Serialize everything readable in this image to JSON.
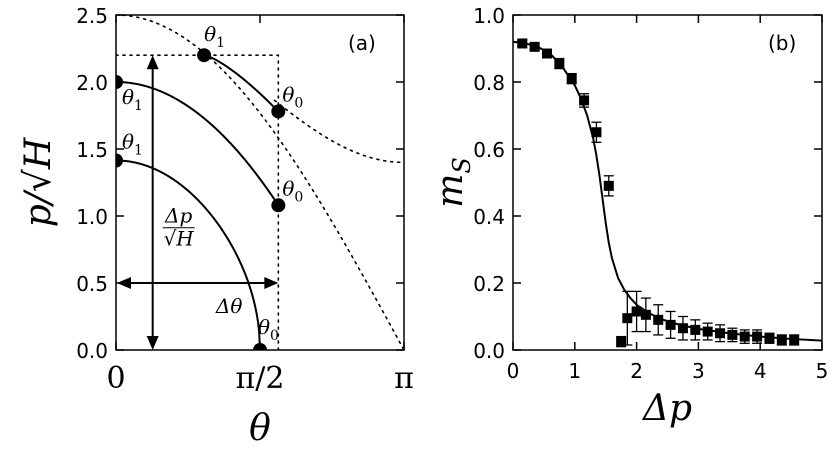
{
  "chart_data": [
    {
      "type": "line",
      "panel_label": "(a)",
      "xlabel": "θ",
      "ylabel": "p/√H",
      "xlim": [
        0,
        3.14159
      ],
      "ylim": [
        0,
        2.5
      ],
      "x_tick_labels": [
        "0",
        "π/2",
        "π"
      ],
      "x_tick_values": [
        0,
        1.5708,
        3.14159
      ],
      "y_tick_labels": [
        "0.0",
        "0.5",
        "1.0",
        "1.5",
        "2.0",
        "2.5"
      ],
      "y_tick_values": [
        0,
        0.5,
        1.0,
        1.5,
        2.0,
        2.5
      ],
      "curves": [
        {
          "style": "solid",
          "E": 0.5,
          "theta_range": [
            0,
            1.5708
          ]
        },
        {
          "style": "solid",
          "E": 1.0,
          "theta_range": [
            0,
            1.7708
          ]
        },
        {
          "style": "solid",
          "E": 2.0,
          "theta_range": [
            0.9608,
            1.7708
          ]
        },
        {
          "style": "dotted",
          "relation": "p = sqrt(2H)·cos(θ/2)",
          "theta_range": [
            1.73,
            3.14159
          ]
        },
        {
          "style": "dotted",
          "relation": "p = 2·sqrt(H)·cos(θ/2)",
          "theta_range": [
            0,
            3.14159
          ]
        }
      ],
      "points": [
        {
          "theta": 0,
          "p": 2.0,
          "label": "θ",
          "sub": "1"
        },
        {
          "theta": 0,
          "p": 1.4142,
          "label": "θ",
          "sub": "1"
        },
        {
          "theta": 0.9608,
          "p": 2.2,
          "label": "θ",
          "sub": "1"
        },
        {
          "theta": 1.7708,
          "p": 1.78,
          "label": "θ",
          "sub": "0"
        },
        {
          "theta": 1.7708,
          "p": 1.08,
          "label": "θ",
          "sub": "0"
        },
        {
          "theta": 1.5708,
          "p": 0.0,
          "label": "θ",
          "sub": "0"
        }
      ],
      "reference_lines": [
        {
          "style": "dotted",
          "orientation": "horizontal",
          "value": 2.2,
          "range": [
            0,
            1.7708
          ]
        },
        {
          "style": "dotted",
          "orientation": "vertical",
          "value": 1.7708,
          "range": [
            0,
            2.2
          ]
        }
      ],
      "arrows": [
        {
          "orientation": "vertical",
          "at": 0.4,
          "range": [
            0,
            2.2
          ],
          "label": "Δp/√H",
          "label_num": "Δp",
          "label_den": "√H"
        },
        {
          "orientation": "horizontal",
          "at": 0.5,
          "range": [
            0,
            1.7708
          ],
          "label": "Δθ"
        }
      ]
    },
    {
      "type": "scatter",
      "panel_label": "(b)",
      "xlabel": "Δp",
      "ylabel": "m_S",
      "ylabel_main": "m",
      "ylabel_sub": "S",
      "xlim": [
        0,
        5
      ],
      "ylim": [
        0,
        1.0
      ],
      "x_tick_labels": [
        "0",
        "1",
        "2",
        "3",
        "4",
        "5"
      ],
      "x_tick_values": [
        0,
        1,
        2,
        3,
        4,
        5
      ],
      "y_tick_labels": [
        "0.0",
        "0.2",
        "0.4",
        "0.6",
        "0.8",
        "1.0"
      ],
      "y_tick_values": [
        0,
        0.2,
        0.4,
        0.6,
        0.8,
        1.0
      ],
      "series": [
        {
          "x": [
            0.15,
            0.35,
            0.55,
            0.75,
            0.95,
            1.15,
            1.35,
            1.55,
            1.75,
            1.85,
            2.0,
            2.15,
            2.35,
            2.55,
            2.75,
            2.95,
            3.15,
            3.35,
            3.55,
            3.75,
            3.95,
            4.15,
            4.35,
            4.55
          ],
          "y": [
            0.915,
            0.905,
            0.885,
            0.855,
            0.81,
            0.745,
            0.65,
            0.49,
            0.025,
            0.095,
            0.115,
            0.105,
            0.09,
            0.075,
            0.065,
            0.06,
            0.055,
            0.05,
            0.045,
            0.04,
            0.04,
            0.035,
            0.03,
            0.03
          ],
          "yerr": [
            0.01,
            0.01,
            0.012,
            0.015,
            0.015,
            0.02,
            0.03,
            0.03,
            0.015,
            0.08,
            0.06,
            0.05,
            0.045,
            0.04,
            0.035,
            0.03,
            0.025,
            0.025,
            0.02,
            0.02,
            0.02,
            0.015,
            0.015,
            0.015
          ]
        }
      ],
      "fit_curve": {
        "x": [
          0,
          0.2,
          0.4,
          0.6,
          0.8,
          1.0,
          1.1,
          1.2,
          1.3,
          1.35,
          1.4,
          1.45,
          1.5,
          1.55,
          1.6,
          1.7,
          1.8,
          1.9,
          2.0,
          2.2,
          2.4,
          2.7,
          3.0,
          3.5,
          4.0,
          4.5,
          5.0
        ],
        "y": [
          0.92,
          0.915,
          0.905,
          0.885,
          0.845,
          0.79,
          0.75,
          0.7,
          0.63,
          0.58,
          0.52,
          0.45,
          0.38,
          0.32,
          0.275,
          0.215,
          0.18,
          0.155,
          0.135,
          0.11,
          0.092,
          0.075,
          0.063,
          0.05,
          0.04,
          0.033,
          0.028
        ]
      }
    }
  ]
}
